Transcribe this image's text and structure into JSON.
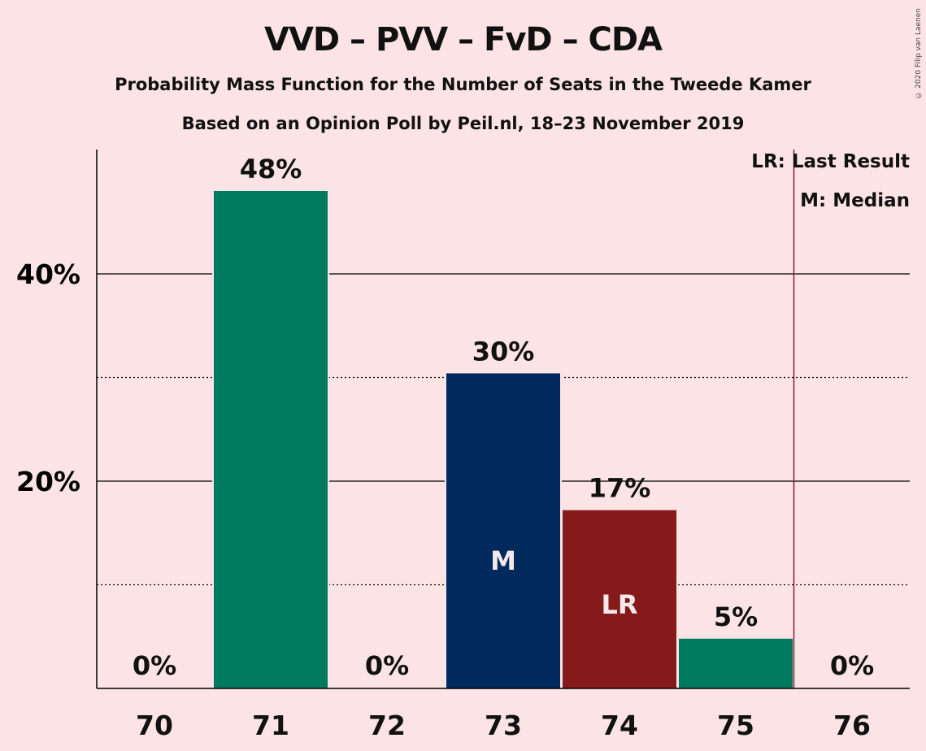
{
  "chart_data": {
    "type": "bar",
    "title": "VVD – PVV – FvD – CDA",
    "subtitle": "Probability Mass Function for the Number of Seats in the Tweede Kamer",
    "subtitle2": "Based on an Opinion Poll by Peil.nl, 18–23 November 2019",
    "copyright": "© 2020 Filip van Laenen",
    "categories": [
      "70",
      "71",
      "72",
      "73",
      "74",
      "75",
      "76"
    ],
    "values": [
      0,
      48,
      0,
      30.4,
      17.2,
      4.8,
      0
    ],
    "value_labels": [
      "0%",
      "48%",
      "0%",
      "30%",
      "17%",
      "5%",
      "0%"
    ],
    "bar_colors": [
      "#007a5e",
      "#007a5e",
      "#007a5e",
      "#00295e",
      "#861a1a",
      "#007a5e",
      "#007a5e"
    ],
    "bar_marks": [
      "",
      "",
      "",
      "M",
      "LR",
      "",
      ""
    ],
    "ylim": [
      0,
      52
    ],
    "y_major_ticks": [
      20,
      40
    ],
    "y_major_labels": [
      "20%",
      "40%"
    ],
    "y_minor_ticks": [
      10,
      30
    ],
    "last_result_after": "75",
    "legend": [
      "LR: Last Result",
      "M: Median"
    ],
    "xlabel": "",
    "ylabel": ""
  }
}
